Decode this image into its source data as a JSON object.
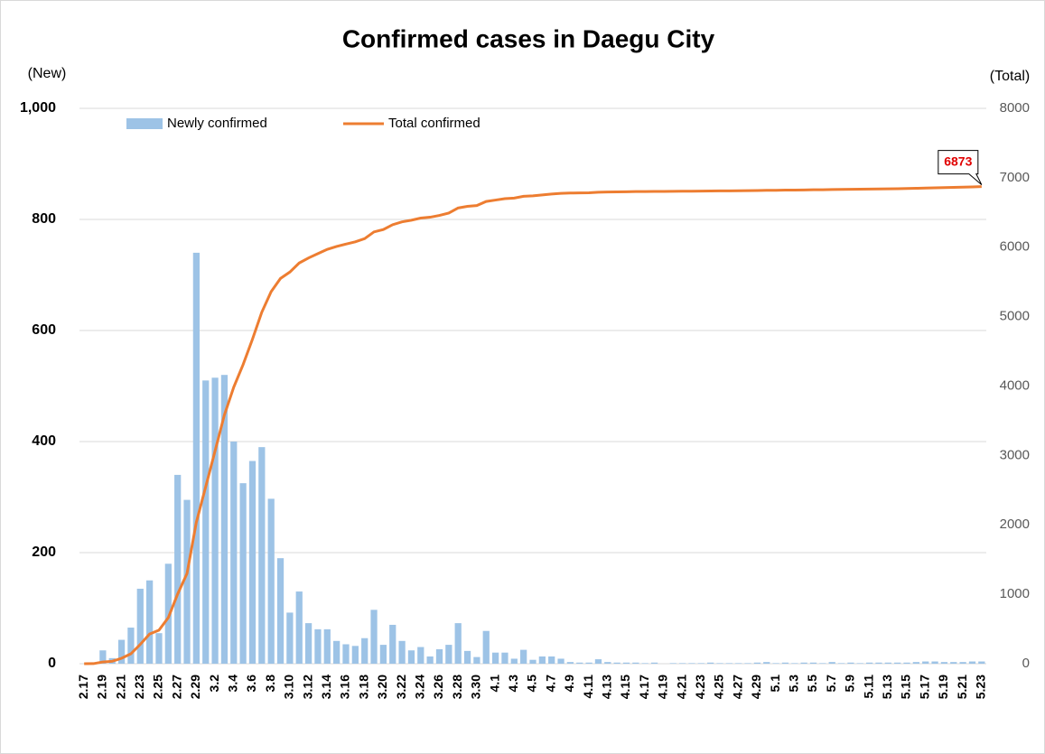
{
  "chart_data": {
    "type": "bar",
    "title": "Confirmed cases in Daegu City",
    "ylabel": "(New)",
    "y2label": "(Total)",
    "categories": [
      "2.17",
      null,
      "2.19",
      null,
      "2.21",
      null,
      "2.23",
      null,
      "2.25",
      null,
      "2.27",
      null,
      "2.29",
      null,
      "3.2",
      null,
      "3.4",
      null,
      "3.6",
      null,
      "3.8",
      null,
      "3.10",
      null,
      "3.12",
      null,
      "3.14",
      null,
      "3.16",
      null,
      "3.18",
      null,
      "3.20",
      null,
      "3.22",
      null,
      "3.24",
      null,
      "3.26",
      null,
      "3.28",
      null,
      "3.30",
      null,
      "4.1",
      null,
      "4.3",
      null,
      "4.5",
      null,
      "4.7",
      null,
      "4.9",
      null,
      "4.11",
      null,
      "4.13",
      null,
      "4.15",
      null,
      "4.17",
      null,
      "4.19",
      null,
      "4.21",
      null,
      "4.23",
      null,
      "4.25",
      null,
      "4.27",
      null,
      "4.29",
      null,
      "5.1",
      null,
      "5.3",
      null,
      "5.5",
      null,
      "5.7",
      null,
      "5.9",
      null,
      "5.11",
      null,
      "5.13",
      null,
      "5.15",
      null,
      "5.17",
      null,
      "5.19",
      null,
      "5.21",
      null,
      "5.23"
    ],
    "series": [
      {
        "name": "Newly confirmed",
        "type": "bar",
        "color": "#9dc3e6",
        "values": [
          0,
          1,
          24,
          10,
          43,
          65,
          135,
          150,
          55,
          180,
          340,
          295,
          740,
          510,
          515,
          520,
          400,
          325,
          365,
          390,
          297,
          190,
          92,
          130,
          73,
          62,
          62,
          41,
          35,
          32,
          46,
          97,
          34,
          70,
          41,
          24,
          30,
          13,
          26,
          34,
          73,
          23,
          12,
          59,
          20,
          20,
          9,
          25,
          7,
          13,
          13,
          9,
          3,
          2,
          2,
          8,
          3,
          2,
          2,
          2,
          1,
          2,
          0,
          1,
          1,
          1,
          1,
          2,
          1,
          1,
          1,
          1,
          2,
          3,
          1,
          2,
          1,
          2,
          2,
          1,
          3,
          1,
          2,
          1,
          2,
          2,
          2,
          2,
          2,
          3,
          4,
          4,
          3,
          3,
          3,
          4,
          4
        ]
      },
      {
        "name": "Total confirmed",
        "type": "line",
        "axis": "y2",
        "color": "#ed7d31",
        "values": [
          0,
          1,
          25,
          35,
          78,
          143,
          278,
          428,
          483,
          663,
          1003,
          1298,
          2038,
          2548,
          3063,
          3583,
          3983,
          4308,
          4673,
          5063,
          5360,
          5550,
          5642,
          5772,
          5845,
          5907,
          5969,
          6010,
          6045,
          6077,
          6123,
          6220,
          6254,
          6324,
          6365,
          6389,
          6419,
          6432,
          6458,
          6492,
          6565,
          6588,
          6600,
          6659,
          6679,
          6699,
          6708,
          6733,
          6740,
          6753,
          6766,
          6775,
          6780,
          6782,
          6784,
          6792,
          6795,
          6797,
          6799,
          6801,
          6802,
          6804,
          6804,
          6805,
          6806,
          6807,
          6808,
          6810,
          6811,
          6812,
          6813,
          6814,
          6816,
          6819,
          6820,
          6822,
          6823,
          6825,
          6827,
          6828,
          6831,
          6832,
          6834,
          6835,
          6837,
          6839,
          6841,
          6843,
          6845,
          6848,
          6852,
          6856,
          6859,
          6862,
          6865,
          6869,
          6873
        ]
      }
    ],
    "ylim": [
      0,
      1000
    ],
    "yticks": [
      0,
      200,
      400,
      600,
      800,
      {
        "value": 1000,
        "label": "1,000"
      }
    ],
    "y2lim": [
      0,
      8000
    ],
    "y2ticks": [
      0,
      1000,
      2000,
      3000,
      4000,
      5000,
      6000,
      7000,
      8000
    ],
    "grid": true,
    "legend": "top-left"
  }
}
